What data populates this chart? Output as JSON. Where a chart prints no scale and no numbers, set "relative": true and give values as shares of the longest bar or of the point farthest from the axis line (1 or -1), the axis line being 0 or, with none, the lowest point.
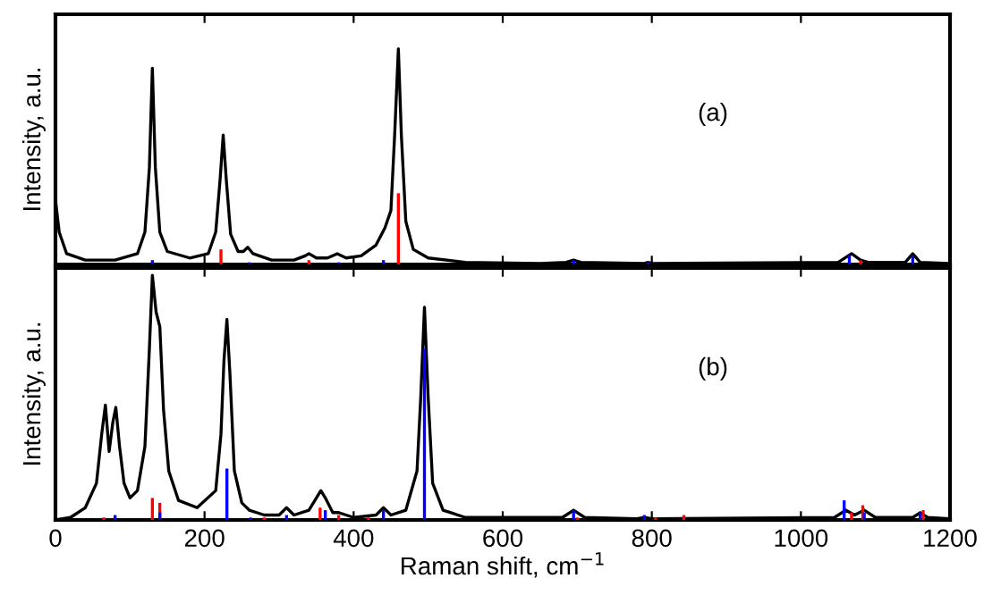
{
  "chart_data": [
    {
      "type": "line",
      "relative": true,
      "xlim": [
        0,
        1200
      ],
      "xticks": [
        0,
        200,
        400,
        600,
        800,
        1000,
        1200
      ],
      "tick_labels": false,
      "ylabel": "Intensity, a.u.",
      "annotations": [
        "(a)"
      ],
      "grid": false,
      "legend": false,
      "series": [
        {
          "color": "#000000",
          "x": [
            0,
            5,
            15,
            40,
            80,
            110,
            120,
            126,
            130,
            134,
            140,
            150,
            180,
            205,
            215,
            221,
            225,
            229,
            235,
            245,
            252,
            258,
            265,
            290,
            320,
            335,
            340,
            350,
            365,
            378,
            390,
            410,
            430,
            442,
            450,
            455,
            460,
            464,
            470,
            480,
            500,
            550,
            650,
            685,
            695,
            705,
            790,
            795,
            800,
            1050,
            1068,
            1080,
            1090,
            1140,
            1150,
            1160,
            1200
          ],
          "values": [
            0.3,
            0.15,
            0.05,
            0.02,
            0.02,
            0.05,
            0.15,
            0.45,
            0.91,
            0.45,
            0.15,
            0.06,
            0.03,
            0.05,
            0.15,
            0.4,
            0.6,
            0.4,
            0.14,
            0.06,
            0.06,
            0.08,
            0.05,
            0.02,
            0.02,
            0.04,
            0.05,
            0.03,
            0.03,
            0.05,
            0.03,
            0.04,
            0.09,
            0.17,
            0.25,
            0.6,
            1.0,
            0.6,
            0.2,
            0.07,
            0.03,
            0.01,
            0.005,
            0.01,
            0.02,
            0.01,
            0.005,
            0.01,
            0.005,
            0.01,
            0.05,
            0.02,
            0.01,
            0.01,
            0.05,
            0.01,
            0.005
          ]
        },
        {
          "type": "bar",
          "color": "#ff0000",
          "x": [
            222,
            340,
            460,
            1080
          ],
          "values": [
            0.07,
            0.02,
            0.33,
            0.02
          ]
        },
        {
          "type": "bar",
          "color": "#0000ff",
          "x": [
            130,
            260,
            380,
            440,
            695,
            795,
            1065,
            1150
          ],
          "values": [
            0.02,
            0.01,
            0.01,
            0.02,
            0.02,
            0.01,
            0.04,
            0.04
          ]
        }
      ]
    },
    {
      "type": "line",
      "relative": true,
      "xlim": [
        0,
        1200
      ],
      "xticks": [
        0,
        200,
        400,
        600,
        800,
        1000,
        1200
      ],
      "tick_labels": "x",
      "xlabel": "Raman shift, cm$^{−1}$",
      "ylabel": "Intensity, a.u.",
      "annotations": [
        "(b)"
      ],
      "grid": false,
      "legend": false,
      "series": [
        {
          "color": "#000000",
          "x": [
            0,
            20,
            40,
            55,
            62,
            67,
            72,
            77,
            81,
            86,
            92,
            100,
            110,
            120,
            126,
            130,
            135,
            140,
            145,
            152,
            165,
            190,
            215,
            222,
            226,
            230,
            234,
            240,
            250,
            260,
            270,
            280,
            300,
            310,
            320,
            340,
            350,
            356,
            362,
            372,
            380,
            400,
            430,
            440,
            450,
            470,
            485,
            490,
            495,
            500,
            506,
            520,
            550,
            680,
            695,
            710,
            780,
            790,
            800,
            1045,
            1060,
            1072,
            1085,
            1100,
            1150,
            1160,
            1170,
            1200
          ],
          "values": [
            0.0,
            0.01,
            0.05,
            0.15,
            0.35,
            0.47,
            0.28,
            0.4,
            0.46,
            0.3,
            0.15,
            0.09,
            0.12,
            0.3,
            0.7,
            1.0,
            0.85,
            0.79,
            0.45,
            0.2,
            0.08,
            0.05,
            0.12,
            0.35,
            0.65,
            0.82,
            0.6,
            0.2,
            0.07,
            0.04,
            0.03,
            0.02,
            0.02,
            0.05,
            0.02,
            0.04,
            0.09,
            0.12,
            0.09,
            0.03,
            0.03,
            0.01,
            0.02,
            0.05,
            0.02,
            0.04,
            0.2,
            0.5,
            0.87,
            0.5,
            0.15,
            0.04,
            0.01,
            0.01,
            0.04,
            0.01,
            0.005,
            0.01,
            0.005,
            0.01,
            0.04,
            0.02,
            0.04,
            0.01,
            0.01,
            0.03,
            0.01,
            0.005
          ]
        },
        {
          "type": "bar",
          "color": "#ff0000",
          "x": [
            65,
            130,
            140,
            280,
            355,
            380,
            420,
            700,
            805,
            843,
            1068,
            1083,
            1164
          ],
          "values": [
            0.01,
            0.09,
            0.07,
            0.01,
            0.05,
            0.02,
            0.01,
            0.01,
            0.01,
            0.02,
            0.03,
            0.06,
            0.04
          ]
        },
        {
          "type": "bar",
          "color": "#0000ff",
          "x": [
            80,
            140,
            230,
            262,
            310,
            362,
            440,
            495,
            695,
            790,
            1058,
            1085,
            1160
          ],
          "values": [
            0.02,
            0.03,
            0.21,
            0.01,
            0.02,
            0.04,
            0.04,
            0.7,
            0.04,
            0.02,
            0.08,
            0.03,
            0.03
          ]
        }
      ]
    }
  ]
}
